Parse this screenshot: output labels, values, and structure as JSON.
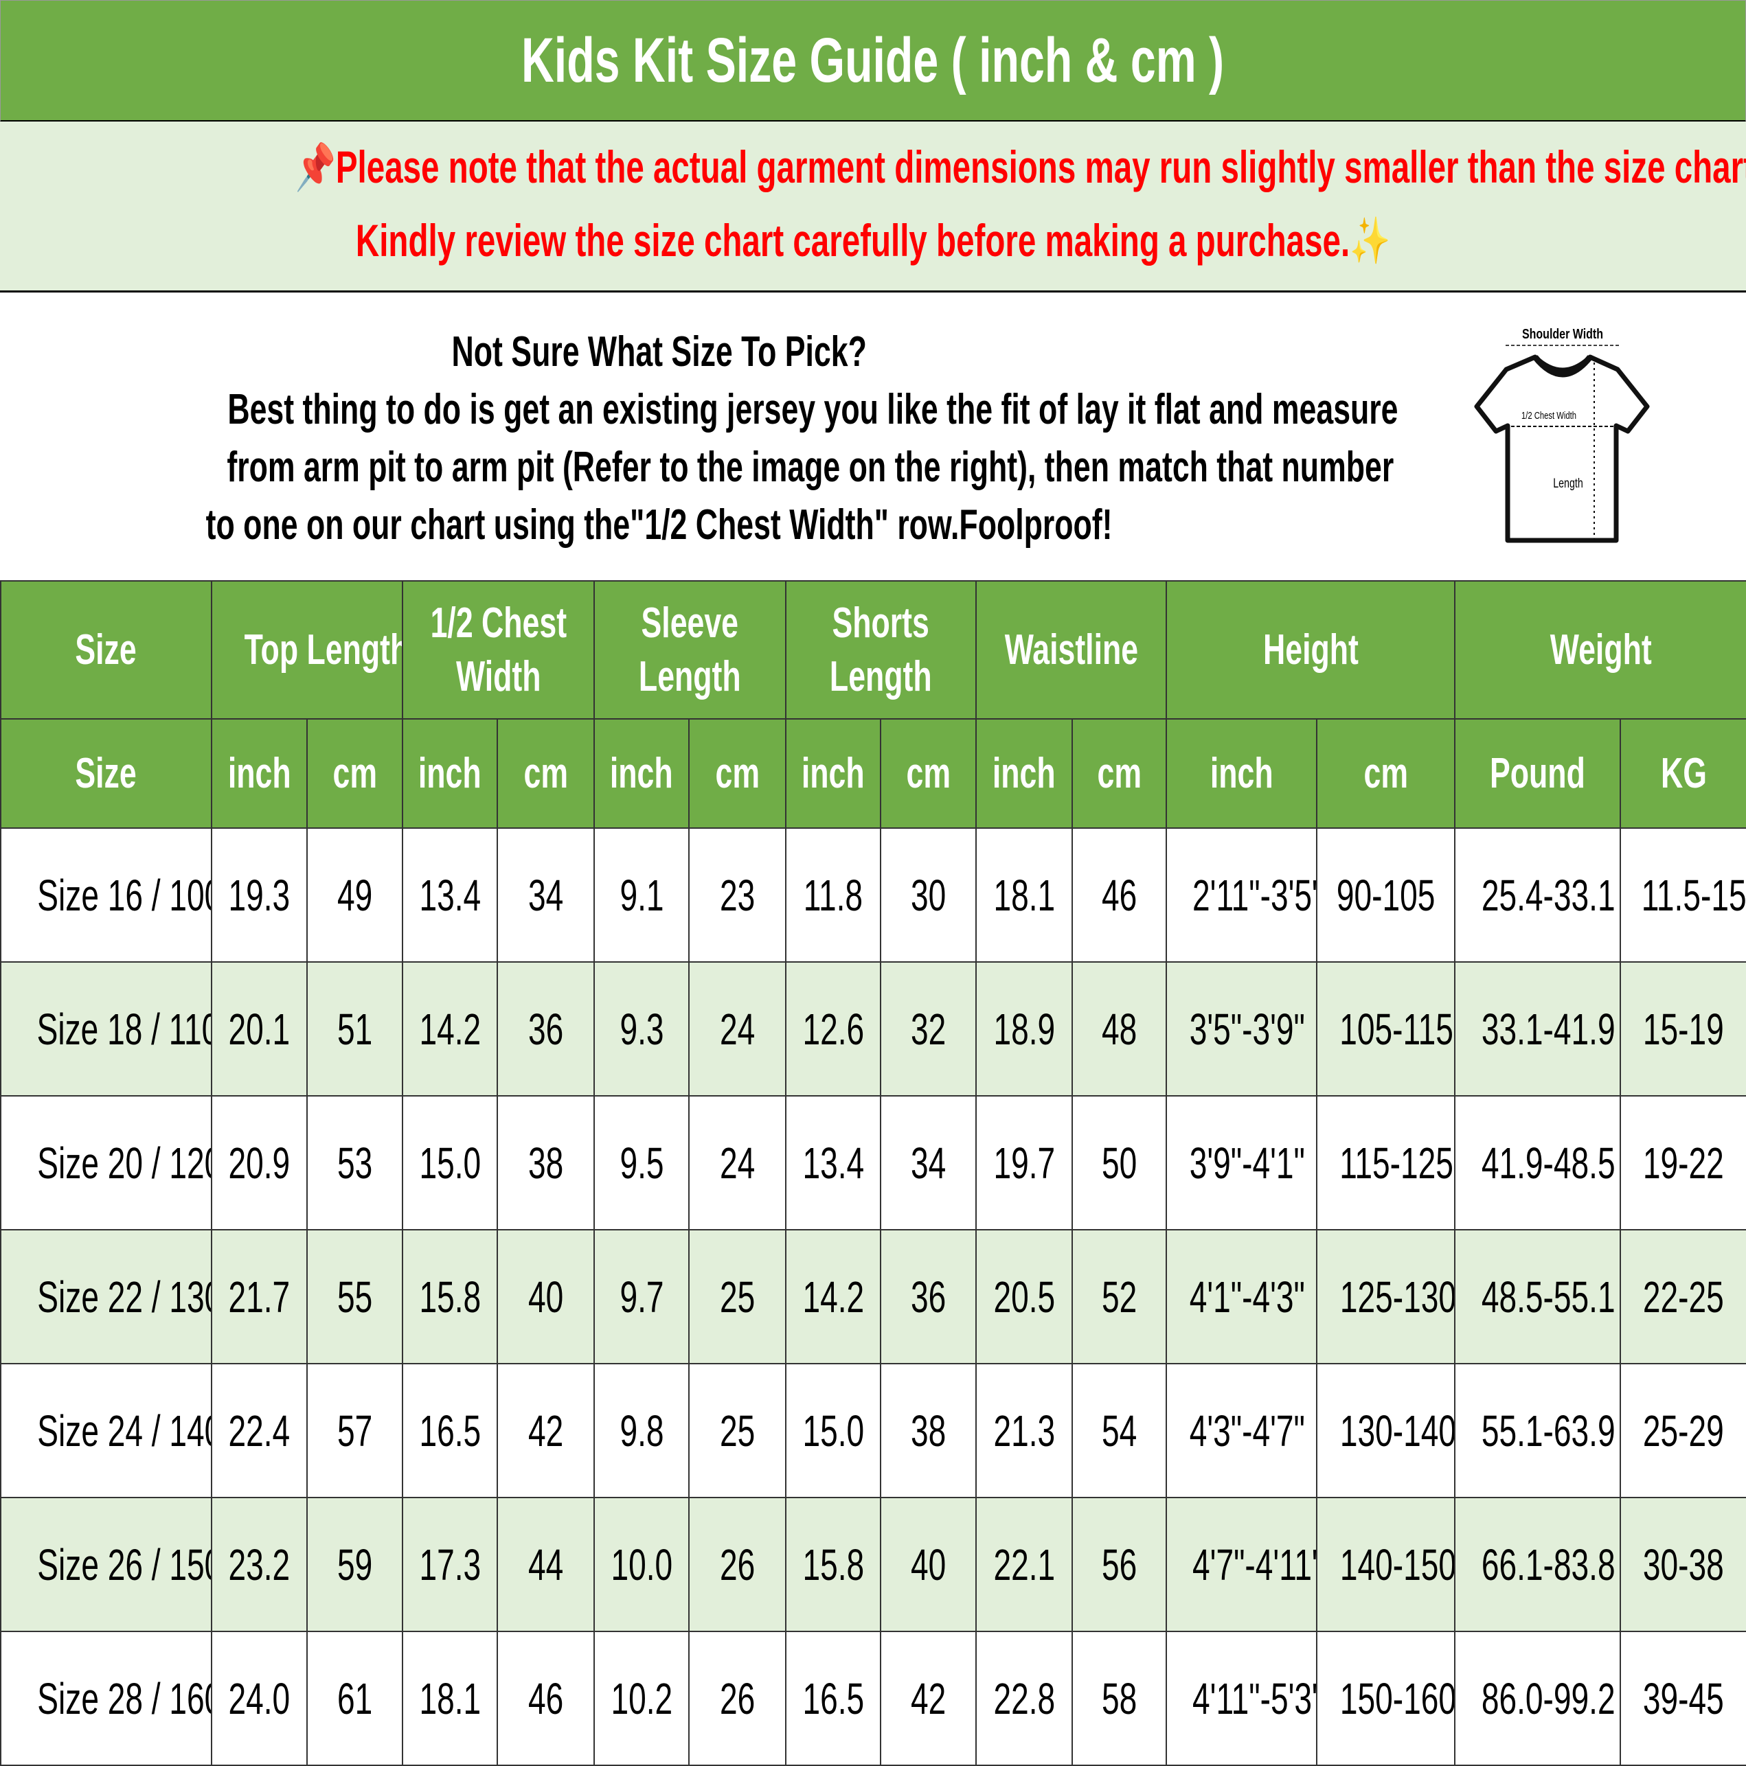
{
  "title": "Kids Kit Size Guide ( inch & cm )",
  "notice": {
    "line1": "Please note that the actual garment dimensions may run slightly smaller than the size chart",
    "line1_end": ".",
    "line2": "Kindly review the size chart carefully before making a purchase.",
    "pin_icon": "📌",
    "ruler_icon": "📏",
    "sparkle_icon": "✨",
    "color": "#ff0000"
  },
  "intro": {
    "lines": [
      "Not Sure What Size To Pick?",
      "Best thing to do is get an existing jersey you like the fit of lay it flat and measure",
      "from arm pit to arm pit (Refer to the image on the right), then match that number",
      "to one on our chart using the\"1/2 Chest Width\" row.Foolproof!"
    ]
  },
  "diagram": {
    "shoulder": "Shoulder Width",
    "chest": "1/2 Chest Width",
    "length": "Length"
  },
  "colors": {
    "header_green": "#70ad47",
    "row_alt": "#e2efda"
  },
  "table": {
    "groups": [
      [
        "Size"
      ],
      [
        "Top Length"
      ],
      [
        "1/2 Chest",
        "Width"
      ],
      [
        "Sleeve",
        "Length"
      ],
      [
        "Shorts",
        "Length"
      ],
      [
        "Waistline"
      ],
      [
        "Height"
      ],
      [
        "Weight"
      ]
    ],
    "units": [
      "Size",
      "inch",
      "cm",
      "inch",
      "cm",
      "inch",
      "cm",
      "inch",
      "cm",
      "inch",
      "cm",
      "inch",
      "cm",
      "Pound",
      "KG"
    ],
    "rows": [
      [
        "Size 16 / 100",
        "19.3",
        "49",
        "13.4",
        "34",
        "9.1",
        "23",
        "11.8",
        "30",
        "18.1",
        "46",
        "2'11\"-3'5\"",
        "90-105",
        "25.4-33.1",
        "11.5-15"
      ],
      [
        "Size 18 / 110",
        "20.1",
        "51",
        "14.2",
        "36",
        "9.3",
        "24",
        "12.6",
        "32",
        "18.9",
        "48",
        "3'5\"-3'9\"",
        "105-115",
        "33.1-41.9",
        "15-19"
      ],
      [
        "Size 20 / 120",
        "20.9",
        "53",
        "15.0",
        "38",
        "9.5",
        "24",
        "13.4",
        "34",
        "19.7",
        "50",
        "3'9\"-4'1\"",
        "115-125",
        "41.9-48.5",
        "19-22"
      ],
      [
        "Size 22 / 130",
        "21.7",
        "55",
        "15.8",
        "40",
        "9.7",
        "25",
        "14.2",
        "36",
        "20.5",
        "52",
        "4'1\"-4'3\"",
        "125-130",
        "48.5-55.1",
        "22-25"
      ],
      [
        "Size 24 / 140",
        "22.4",
        "57",
        "16.5",
        "42",
        "9.8",
        "25",
        "15.0",
        "38",
        "21.3",
        "54",
        "4'3\"-4'7\"",
        "130-140",
        "55.1-63.9",
        "25-29"
      ],
      [
        "Size 26 / 150",
        "23.2",
        "59",
        "17.3",
        "44",
        "10.0",
        "26",
        "15.8",
        "40",
        "22.1",
        "56",
        "4'7\"-4'11\"",
        "140-150",
        "66.1-83.8",
        "30-38"
      ],
      [
        "Size 28 / 160",
        "24.0",
        "61",
        "18.1",
        "46",
        "10.2",
        "26",
        "16.5",
        "42",
        "22.8",
        "58",
        "4'11\"-5'3\"",
        "150-160",
        "86.0-99.2",
        "39-45"
      ]
    ]
  }
}
